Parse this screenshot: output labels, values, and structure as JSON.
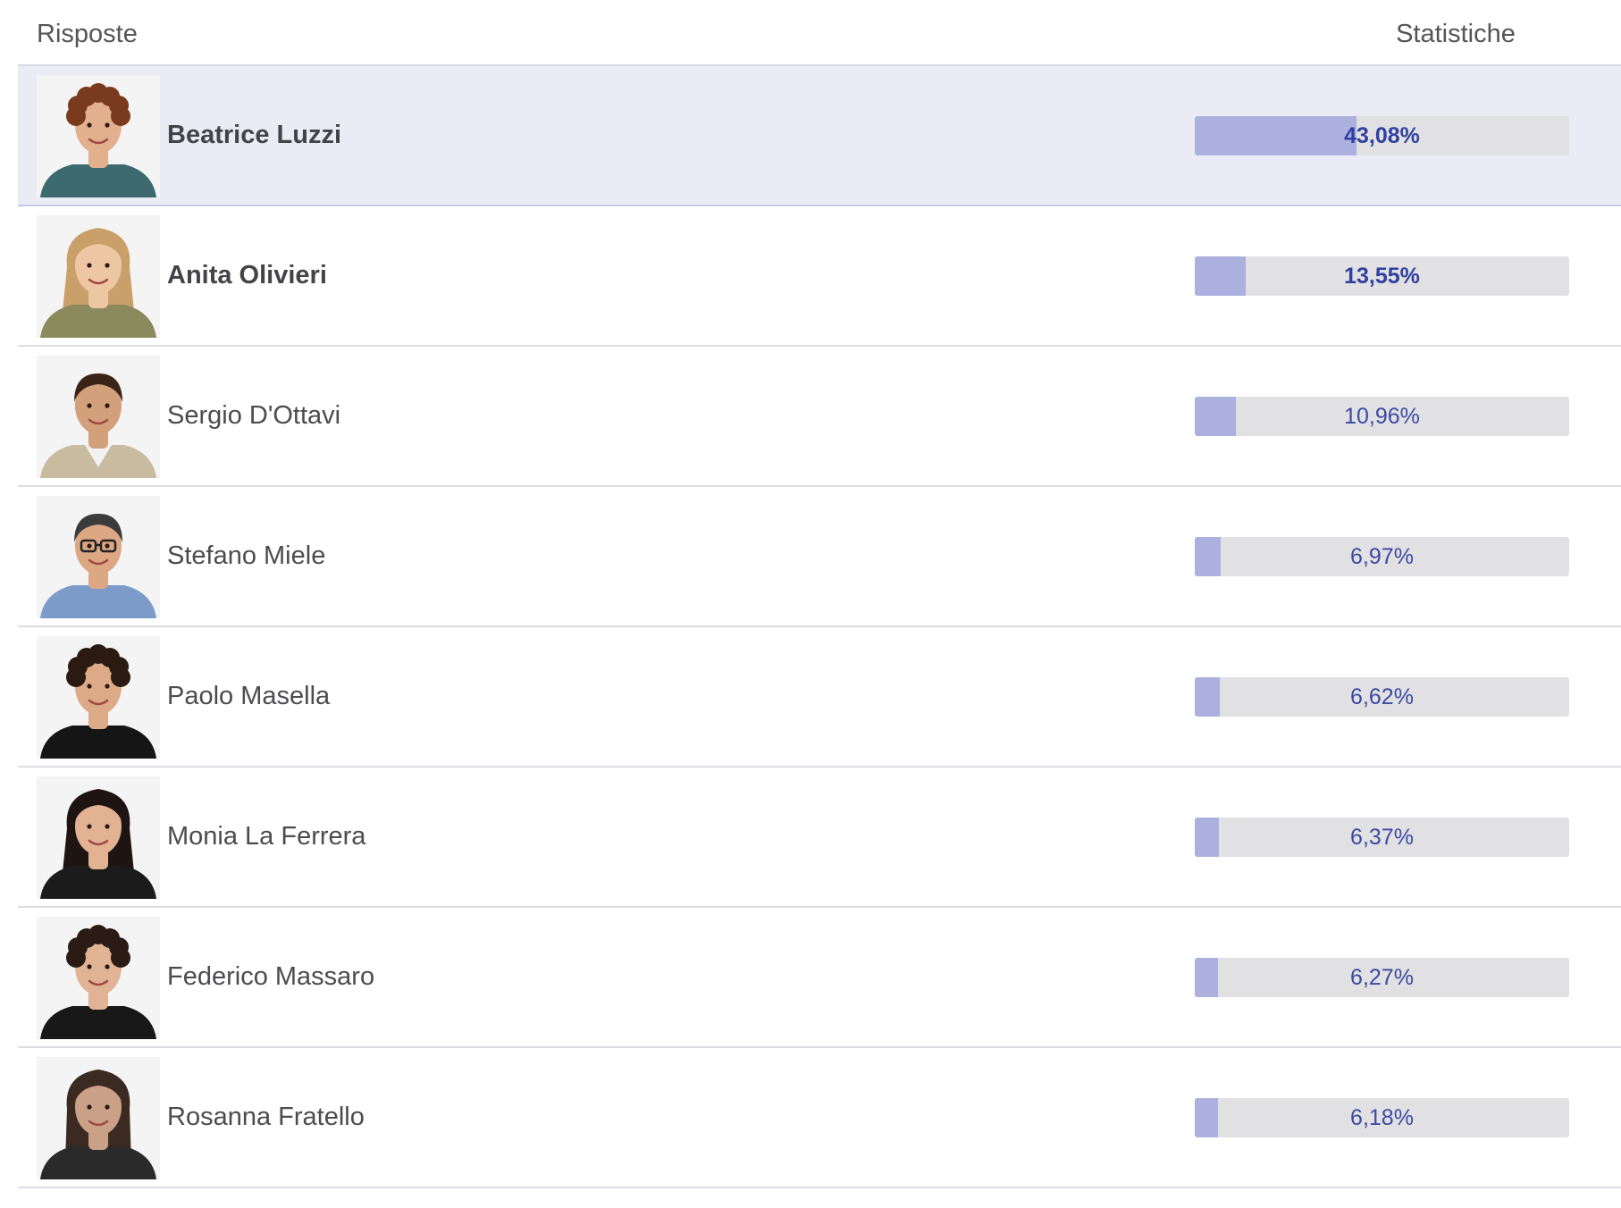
{
  "header": {
    "answers_label": "Risposte",
    "stats_label": "Statistiche"
  },
  "colors": {
    "bar_fill": "#abb0de",
    "bar_track": "#e1e1e3",
    "percent_text": "#3c49a0",
    "highlight_row": "#ebebf5"
  },
  "options": [
    {
      "name": "Beatrice Luzzi",
      "percent_label": "43,08%",
      "value": 43.08,
      "bold": true,
      "highlighted": true,
      "avatar_icon": "woman-curly-red-hair-portrait"
    },
    {
      "name": "Anita Olivieri",
      "percent_label": "13,55%",
      "value": 13.55,
      "bold": true,
      "highlighted": false,
      "avatar_icon": "woman-long-blonde-hair-portrait"
    },
    {
      "name": "Sergio D'Ottavi",
      "percent_label": "10,96%",
      "value": 10.96,
      "bold": false,
      "highlighted": false,
      "avatar_icon": "man-beige-blazer-portrait"
    },
    {
      "name": "Stefano Miele",
      "percent_label": "6,97%",
      "value": 6.97,
      "bold": false,
      "highlighted": false,
      "avatar_icon": "man-glasses-blue-shirt-portrait"
    },
    {
      "name": "Paolo Masella",
      "percent_label": "6,62%",
      "value": 6.62,
      "bold": false,
      "highlighted": false,
      "avatar_icon": "man-black-tshirt-portrait"
    },
    {
      "name": "Monia La Ferrera",
      "percent_label": "6,37%",
      "value": 6.37,
      "bold": false,
      "highlighted": false,
      "avatar_icon": "woman-long-dark-hair-portrait"
    },
    {
      "name": "Federico Massaro",
      "percent_label": "6,27%",
      "value": 6.27,
      "bold": false,
      "highlighted": false,
      "avatar_icon": "man-black-shirt-portrait"
    },
    {
      "name": "Rosanna Fratello",
      "percent_label": "6,18%",
      "value": 6.18,
      "bold": false,
      "highlighted": false,
      "avatar_icon": "woman-dark-bob-hair-portrait"
    }
  ]
}
